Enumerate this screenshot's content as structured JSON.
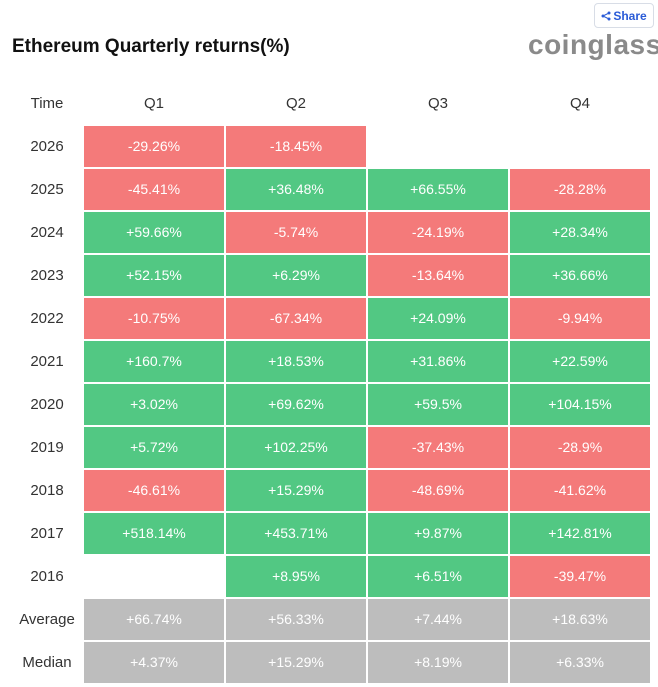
{
  "header": {
    "title": "Ethereum Quarterly returns(%)",
    "logo": "coinglass",
    "share": "Share"
  },
  "colors": {
    "positive": "#52c883",
    "negative": "#f47a7a",
    "summary": "#bdbdbd"
  },
  "table": {
    "columns": [
      "Time",
      "Q1",
      "Q2",
      "Q3",
      "Q4"
    ],
    "rows": [
      [
        "2026",
        "-29.26%",
        "-18.45%",
        null,
        null
      ],
      [
        "2025",
        "-45.41%",
        "+36.48%",
        "+66.55%",
        "-28.28%"
      ],
      [
        "2024",
        "+59.66%",
        "-5.74%",
        "-24.19%",
        "+28.34%"
      ],
      [
        "2023",
        "+52.15%",
        "+6.29%",
        "-13.64%",
        "+36.66%"
      ],
      [
        "2022",
        "-10.75%",
        "-67.34%",
        "+24.09%",
        "-9.94%"
      ],
      [
        "2021",
        "+160.7%",
        "+18.53%",
        "+31.86%",
        "+22.59%"
      ],
      [
        "2020",
        "+3.02%",
        "+69.62%",
        "+59.5%",
        "+104.15%"
      ],
      [
        "2019",
        "+5.72%",
        "+102.25%",
        "-37.43%",
        "-28.9%"
      ],
      [
        "2018",
        "-46.61%",
        "+15.29%",
        "-48.69%",
        "-41.62%"
      ],
      [
        "2017",
        "+518.14%",
        "+453.71%",
        "+9.87%",
        "+142.81%"
      ],
      [
        "2016",
        null,
        "+8.95%",
        "+6.51%",
        "-39.47%"
      ],
      [
        "Average",
        "+66.74%",
        "+56.33%",
        "+7.44%",
        "+18.63%"
      ],
      [
        "Median",
        "+4.37%",
        "+15.29%",
        "+8.19%",
        "+6.33%"
      ]
    ],
    "summary_rows": [
      11,
      12
    ]
  }
}
